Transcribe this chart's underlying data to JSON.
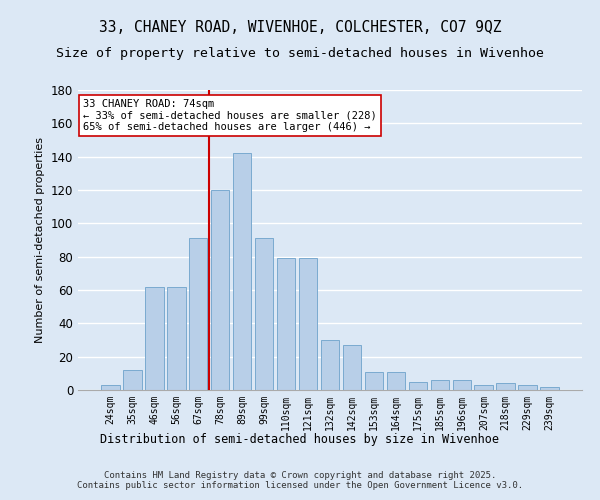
{
  "title": "33, CHANEY ROAD, WIVENHOE, COLCHESTER, CO7 9QZ",
  "subtitle": "Size of property relative to semi-detached houses in Wivenhoe",
  "xlabel": "Distribution of semi-detached houses by size in Wivenhoe",
  "ylabel": "Number of semi-detached properties",
  "categories": [
    "24sqm",
    "35sqm",
    "46sqm",
    "56sqm",
    "67sqm",
    "78sqm",
    "89sqm",
    "99sqm",
    "110sqm",
    "121sqm",
    "132sqm",
    "142sqm",
    "153sqm",
    "164sqm",
    "175sqm",
    "185sqm",
    "196sqm",
    "207sqm",
    "218sqm",
    "229sqm",
    "239sqm"
  ],
  "values": [
    3,
    12,
    62,
    62,
    91,
    120,
    142,
    91,
    79,
    79,
    30,
    27,
    11,
    11,
    5,
    6,
    6,
    3,
    4,
    3,
    2
  ],
  "bar_color": "#b8cfe8",
  "bar_edge_color": "#7aaad0",
  "background_color": "#dce8f5",
  "grid_color": "#ffffff",
  "vline_color": "#cc0000",
  "vline_x": 4.5,
  "annotation_text": "33 CHANEY ROAD: 74sqm\n← 33% of semi-detached houses are smaller (228)\n65% of semi-detached houses are larger (446) →",
  "annotation_box_facecolor": "#ffffff",
  "annotation_box_edgecolor": "#cc0000",
  "ylim": [
    0,
    180
  ],
  "yticks": [
    0,
    20,
    40,
    60,
    80,
    100,
    120,
    140,
    160,
    180
  ],
  "footer": "Contains HM Land Registry data © Crown copyright and database right 2025.\nContains public sector information licensed under the Open Government Licence v3.0.",
  "title_fontsize": 10.5,
  "subtitle_fontsize": 9.5,
  "footer_fontsize": 6.5
}
